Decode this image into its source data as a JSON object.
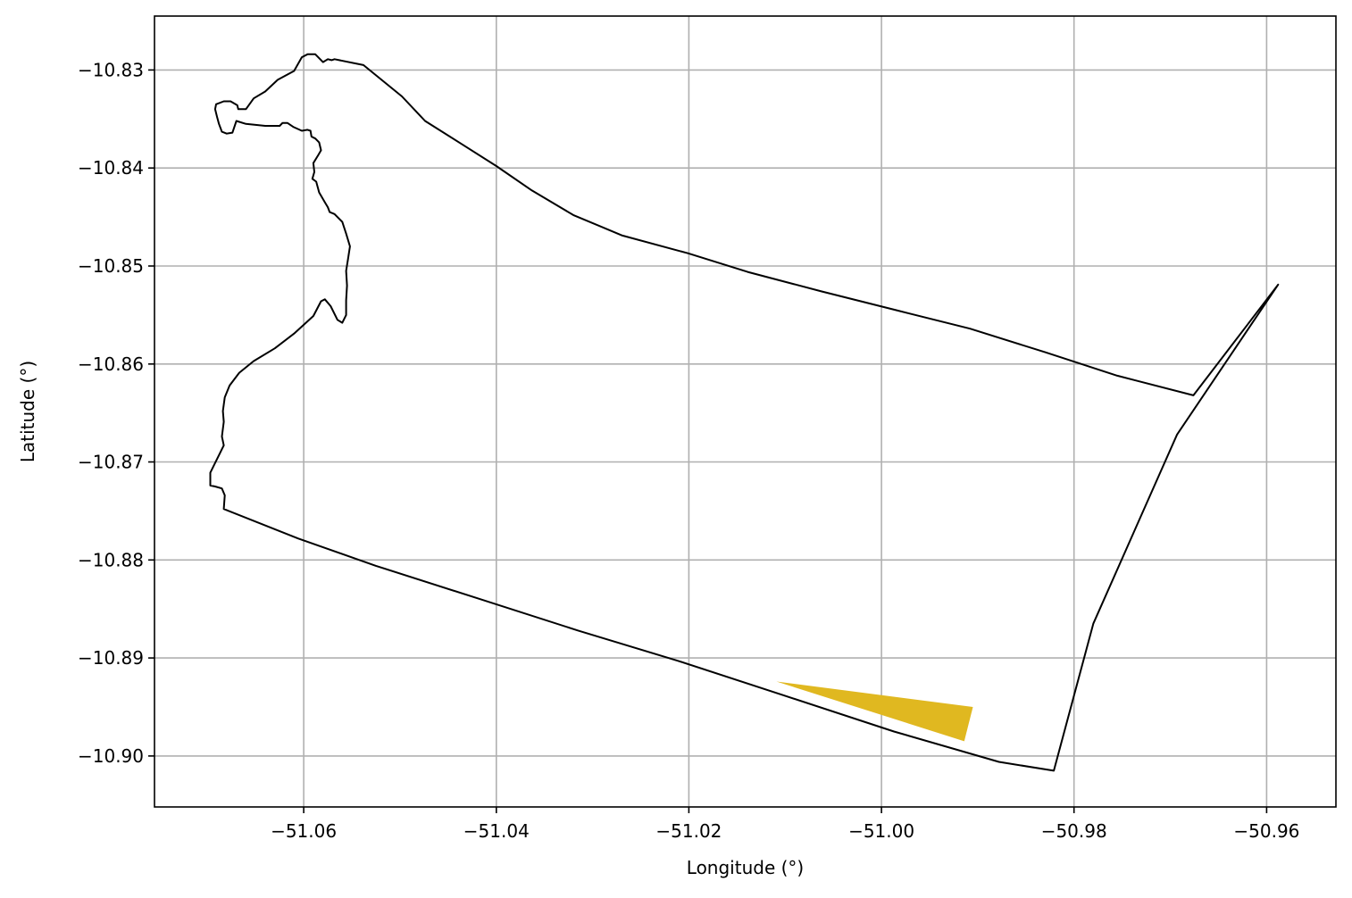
{
  "chart_data": {
    "type": "map",
    "xlabel": "Longitude (°)",
    "ylabel": "Latitude (°)",
    "xlim": [
      -51.0755,
      -50.9528
    ],
    "ylim": [
      -10.9052,
      -10.8245
    ],
    "grid": true,
    "x_ticks": [
      -51.06,
      -51.04,
      -51.02,
      -51.0,
      -50.98,
      -50.96
    ],
    "x_tick_labels": [
      "−51.06",
      "−51.04",
      "−51.02",
      "−51.00",
      "−50.98",
      "−50.96"
    ],
    "y_ticks": [
      -10.83,
      -10.84,
      -10.85,
      -10.86,
      -10.87,
      -10.88,
      -10.89,
      -10.9
    ],
    "y_tick_labels": [
      "−10.83",
      "−10.84",
      "−10.85",
      "−10.86",
      "−10.87",
      "−10.88",
      "−10.89",
      "−10.90"
    ],
    "colors": {
      "boundary": "#000000",
      "highlight": "#e0b820",
      "grid": "#b0b0b0"
    },
    "boundary_polygon": [
      [
        -51.0683,
        -10.8748
      ],
      [
        -51.0682,
        -10.8734
      ],
      [
        -51.0685,
        -10.8727
      ],
      [
        -51.0692,
        -10.8725
      ],
      [
        -51.0697,
        -10.8724
      ],
      [
        -51.0697,
        -10.8711
      ],
      [
        -51.0692,
        -10.8701
      ],
      [
        -51.0687,
        -10.8691
      ],
      [
        -51.0683,
        -10.8683
      ],
      [
        -51.0685,
        -10.8674
      ],
      [
        -51.0683,
        -10.8659
      ],
      [
        -51.0684,
        -10.8648
      ],
      [
        -51.0682,
        -10.8634
      ],
      [
        -51.0677,
        -10.8622
      ],
      [
        -51.0667,
        -10.8609
      ],
      [
        -51.0652,
        -10.8597
      ],
      [
        -51.063,
        -10.8584
      ],
      [
        -51.061,
        -10.8569
      ],
      [
        -51.059,
        -10.8551
      ],
      [
        -51.0582,
        -10.8536
      ],
      [
        -51.0578,
        -10.8534
      ],
      [
        -51.0572,
        -10.8541
      ],
      [
        -51.0565,
        -10.8555
      ],
      [
        -51.056,
        -10.8558
      ],
      [
        -51.0556,
        -10.855
      ],
      [
        -51.0556,
        -10.8535
      ],
      [
        -51.0555,
        -10.852
      ],
      [
        -51.0556,
        -10.8505
      ],
      [
        -51.0554,
        -10.8493
      ],
      [
        -51.0552,
        -10.848
      ],
      [
        -51.0556,
        -10.8467
      ],
      [
        -51.056,
        -10.8455
      ],
      [
        -51.0568,
        -10.8447
      ],
      [
        -51.0573,
        -10.8445
      ],
      [
        -51.0575,
        -10.844
      ],
      [
        -51.0578,
        -10.8435
      ],
      [
        -51.0584,
        -10.8425
      ],
      [
        -51.0587,
        -10.8414
      ],
      [
        -51.0591,
        -10.8411
      ],
      [
        -51.0589,
        -10.8404
      ],
      [
        -51.059,
        -10.8395
      ],
      [
        -51.0585,
        -10.8387
      ],
      [
        -51.0582,
        -10.8382
      ],
      [
        -51.0584,
        -10.8374
      ],
      [
        -51.0588,
        -10.837
      ],
      [
        -51.0592,
        -10.8368
      ],
      [
        -51.0593,
        -10.8362
      ],
      [
        -51.0596,
        -10.8361
      ],
      [
        -51.0602,
        -10.8362
      ],
      [
        -51.0611,
        -10.8358
      ],
      [
        -51.0617,
        -10.8354
      ],
      [
        -51.0622,
        -10.8354
      ],
      [
        -51.0625,
        -10.8357
      ],
      [
        -51.064,
        -10.8357
      ],
      [
        -51.066,
        -10.8355
      ],
      [
        -51.067,
        -10.8352
      ],
      [
        -51.0674,
        -10.8364
      ],
      [
        -51.068,
        -10.8365
      ],
      [
        -51.0685,
        -10.8363
      ],
      [
        -51.0688,
        -10.8355
      ],
      [
        -51.069,
        -10.8348
      ],
      [
        -51.0692,
        -10.834
      ],
      [
        -51.0691,
        -10.8335
      ],
      [
        -51.0683,
        -10.8332
      ],
      [
        -51.0676,
        -10.8332
      ],
      [
        -51.0669,
        -10.8336
      ],
      [
        -51.0668,
        -10.834
      ],
      [
        -51.066,
        -10.834
      ],
      [
        -51.0652,
        -10.8329
      ],
      [
        -51.064,
        -10.8322
      ],
      [
        -51.0627,
        -10.831
      ],
      [
        -51.061,
        -10.8301
      ],
      [
        -51.0602,
        -10.8287
      ],
      [
        -51.0596,
        -10.8284
      ],
      [
        -51.0588,
        -10.8284
      ],
      [
        -51.0584,
        -10.8288
      ],
      [
        -51.058,
        -10.8292
      ],
      [
        -51.0575,
        -10.8289
      ],
      [
        -51.0571,
        -10.829
      ],
      [
        -51.0568,
        -10.8289
      ],
      [
        -51.0538,
        -10.8295
      ],
      [
        -51.0498,
        -10.8327
      ],
      [
        -51.0474,
        -10.8352
      ],
      [
        -51.0437,
        -10.8375
      ],
      [
        -51.04,
        -10.8398
      ],
      [
        -51.0363,
        -10.8423
      ],
      [
        -51.032,
        -10.8448
      ],
      [
        -51.0269,
        -10.8469
      ],
      [
        -51.0201,
        -10.8487
      ],
      [
        -51.0139,
        -10.8506
      ],
      [
        -51.0062,
        -10.8526
      ],
      [
        -50.9985,
        -10.8545
      ],
      [
        -50.9908,
        -10.8564
      ],
      [
        -50.983,
        -10.8588
      ],
      [
        -50.9755,
        -10.8612
      ],
      [
        -50.9676,
        -10.8632
      ],
      [
        -50.9588,
        -10.8519
      ],
      [
        -50.9693,
        -10.8672
      ],
      [
        -50.978,
        -10.8865
      ],
      [
        -50.9821,
        -10.9015
      ],
      [
        -50.9878,
        -10.9006
      ],
      [
        -50.9987,
        -10.8975
      ],
      [
        -51.0102,
        -10.8938
      ],
      [
        -51.0211,
        -10.8903
      ],
      [
        -51.0315,
        -10.8872
      ],
      [
        -51.042,
        -10.8839
      ],
      [
        -51.0525,
        -10.8806
      ],
      [
        -51.0606,
        -10.8778
      ],
      [
        -51.0683,
        -10.8748
      ]
    ],
    "highlight_polygon": [
      [
        -51.0109,
        -10.8924
      ],
      [
        -50.9905,
        -10.895
      ],
      [
        -50.9914,
        -10.8985
      ],
      [
        -51.0109,
        -10.8924
      ]
    ]
  }
}
